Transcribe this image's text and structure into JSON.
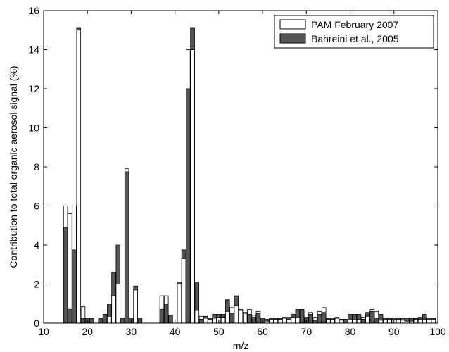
{
  "chart_data": {
    "type": "bar",
    "xlabel": "m/z",
    "ylabel": "Contribution to total organic aerosol signal (%)",
    "xlim": [
      10,
      100
    ],
    "ylim": [
      0,
      16
    ],
    "xticks": [
      10,
      20,
      30,
      40,
      50,
      60,
      70,
      80,
      90,
      100
    ],
    "yticks": [
      0,
      2,
      4,
      6,
      8,
      10,
      12,
      14,
      16
    ],
    "grid": false,
    "legend_position": "top-right",
    "colors": {
      "PAM February 2007": "#ffffff",
      "Bahreini et al., 2005": "#555555"
    },
    "series": [
      {
        "name": "PAM February 2007",
        "x": [
          15,
          16,
          17,
          18,
          19,
          20,
          21,
          25,
          26,
          27,
          28,
          29,
          31,
          37,
          38,
          41,
          42,
          43,
          44,
          45,
          46,
          47,
          48,
          49,
          50,
          51,
          52,
          53,
          54,
          55,
          56,
          57,
          58,
          59,
          60,
          61,
          62,
          63,
          64,
          65,
          66,
          67,
          68,
          69,
          70,
          71,
          72,
          73,
          74,
          75,
          76,
          77,
          78,
          79,
          80,
          81,
          82,
          83,
          84,
          85,
          86,
          87,
          88,
          89,
          90,
          91,
          92,
          93,
          94,
          95,
          96,
          97,
          98,
          99
        ],
        "values": [
          6.0,
          5.6,
          6.0,
          15.0,
          0.85,
          0.25,
          0.25,
          0.35,
          1.4,
          2.0,
          0.25,
          7.9,
          1.7,
          1.4,
          1.4,
          2.0,
          3.3,
          14.0,
          14.0,
          0.65,
          0.35,
          0.25,
          0.2,
          0.25,
          0.3,
          0.3,
          0.6,
          0.8,
          0.9,
          0.65,
          0.5,
          0.7,
          0.4,
          0.6,
          0.25,
          0.1,
          0.2,
          0.2,
          0.2,
          0.25,
          0.2,
          0.3,
          0.3,
          0.7,
          0.3,
          0.55,
          0.3,
          0.6,
          0.8,
          0.2,
          0.2,
          0.25,
          0.15,
          0.2,
          0.2,
          0.2,
          0.2,
          0.3,
          0.35,
          0.7,
          0.6,
          0.15,
          0.2,
          0.2,
          0.2,
          0.2,
          0.15,
          0.1,
          0.1,
          0.2,
          0.2,
          0.2,
          0.2,
          0.2
        ]
      },
      {
        "name": "Bahreini et al., 2005",
        "x": [
          15,
          16,
          17,
          18,
          19,
          20,
          21,
          23,
          24,
          25,
          26,
          27,
          28,
          29,
          30,
          31,
          32,
          37,
          38,
          39,
          41,
          42,
          43,
          44,
          45,
          46,
          47,
          48,
          49,
          50,
          51,
          52,
          53,
          54,
          55,
          56,
          57,
          58,
          59,
          60,
          61,
          62,
          63,
          64,
          65,
          66,
          67,
          68,
          69,
          70,
          71,
          72,
          73,
          74,
          75,
          76,
          77,
          78,
          79,
          80,
          81,
          82,
          83,
          84,
          85,
          86,
          87,
          88,
          89,
          90,
          91,
          92,
          93,
          94,
          95,
          96,
          97,
          98,
          99
        ],
        "values": [
          4.9,
          0.7,
          3.75,
          15.1,
          0.25,
          0.25,
          0.25,
          0.25,
          0.45,
          0.95,
          2.6,
          4.0,
          0.25,
          7.75,
          0.25,
          1.9,
          0.25,
          0.7,
          0.95,
          0.4,
          2.1,
          3.75,
          12.0,
          15.1,
          2.1,
          0.2,
          0.35,
          0.25,
          0.45,
          0.45,
          0.45,
          1.2,
          0.5,
          1.4,
          0.7,
          0.55,
          0.45,
          0.3,
          0.5,
          0.25,
          0.2,
          0.25,
          0.25,
          0.25,
          0.3,
          0.3,
          0.45,
          0.7,
          0.7,
          0.25,
          0.45,
          0.15,
          0.45,
          0.55,
          0.25,
          0.25,
          0.3,
          0.2,
          0.2,
          0.45,
          0.45,
          0.45,
          0.2,
          0.55,
          0.6,
          0.25,
          0.45,
          0.25,
          0.25,
          0.25,
          0.25,
          0.25,
          0.25,
          0.25,
          0.25,
          0.3,
          0.45,
          0.25,
          0.25
        ]
      }
    ]
  }
}
